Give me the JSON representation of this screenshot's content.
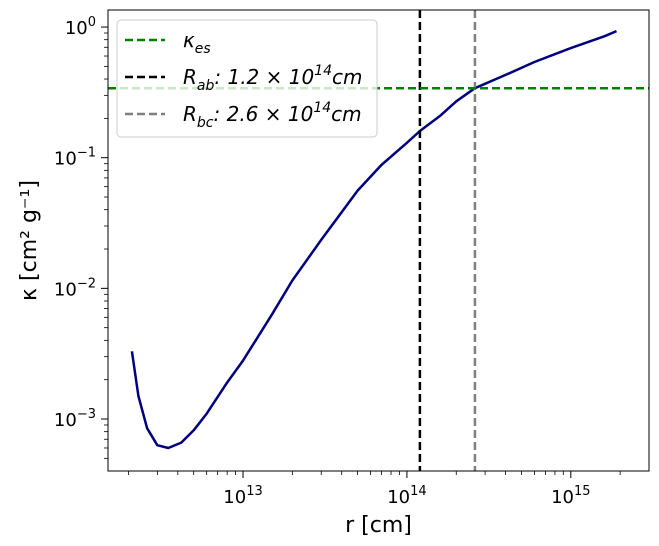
{
  "chart_data": {
    "type": "line",
    "title": "",
    "xlabel": "r [cm]",
    "ylabel": "κ [cm² g⁻¹]",
    "xscale": "log",
    "yscale": "log",
    "xlim": [
      1500000000000.0,
      3000000000000000.0
    ],
    "ylim": [
      0.0004,
      1.35
    ],
    "x_ticks": [
      {
        "value": 10000000000000.0,
        "base": "10",
        "exp": "13"
      },
      {
        "value": 100000000000000.0,
        "base": "10",
        "exp": "14"
      },
      {
        "value": 1000000000000000.0,
        "base": "10",
        "exp": "15"
      }
    ],
    "y_ticks": [
      {
        "value": 1,
        "base": "10",
        "exp": "0"
      },
      {
        "value": 0.1,
        "base": "10",
        "exp": "−1"
      },
      {
        "value": 0.01,
        "base": "10",
        "exp": "−2"
      },
      {
        "value": 0.001,
        "base": "10",
        "exp": "−3"
      }
    ],
    "grid": false,
    "legend_position": "upper-left",
    "series": [
      {
        "color": "#00007f",
        "x": [
          2100000000000.0,
          2300000000000.0,
          2600000000000.0,
          3000000000000.0,
          3500000000000.0,
          4200000000000.0,
          5000000000000.0,
          6000000000000.0,
          8000000000000.0,
          10000000000000.0,
          15000000000000.0,
          20000000000000.0,
          30000000000000.0,
          50000000000000.0,
          70000000000000.0,
          100000000000000.0,
          120000000000000.0,
          160000000000000.0,
          200000000000000.0,
          260000000000000.0,
          400000000000000.0,
          600000000000000.0,
          1000000000000000.0,
          1600000000000000.0,
          1900000000000000.0
        ],
        "y": [
          0.0033,
          0.0015,
          0.00085,
          0.00063,
          0.0006,
          0.00066,
          0.00082,
          0.0011,
          0.0019,
          0.0028,
          0.0063,
          0.0115,
          0.0235,
          0.056,
          0.088,
          0.13,
          0.16,
          0.21,
          0.27,
          0.34,
          0.43,
          0.54,
          0.69,
          0.85,
          0.93
        ]
      }
    ],
    "hlines": [
      {
        "y": 0.34,
        "color": "#008000",
        "legend": {
          "sym": "κ",
          "sub": "es",
          "rest": ""
        }
      }
    ],
    "vlines": [
      {
        "x": 120000000000000.0,
        "color": "#000000",
        "legend": {
          "sym": "R",
          "sub": "ab",
          "rest": ": 1.2 × 10",
          "exp": "14",
          "unit": "cm"
        }
      },
      {
        "x": 260000000000000.0,
        "color": "#808080",
        "legend": {
          "sym": "R",
          "sub": "bc",
          "rest": ": 2.6 × 10",
          "exp": "14",
          "unit": "cm"
        }
      }
    ]
  }
}
